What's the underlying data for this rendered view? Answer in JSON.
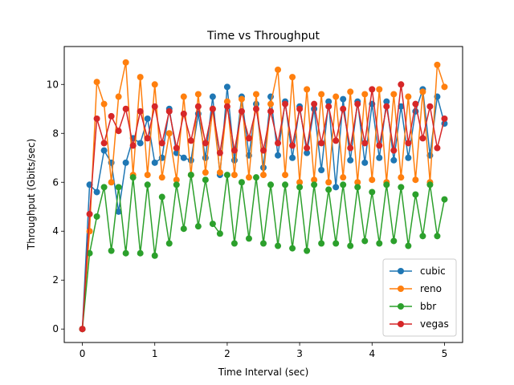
{
  "chart_data": {
    "type": "line",
    "title": "Time vs Throughput",
    "xlabel": "Time Interval (sec)",
    "ylabel": "Throughput (Gbits/sec)",
    "xlim": [
      -0.25,
      5.25
    ],
    "ylim": [
      -0.55,
      11.55
    ],
    "xticks": [
      0,
      1,
      2,
      3,
      4,
      5
    ],
    "yticks": [
      0,
      2,
      4,
      6,
      8,
      10
    ],
    "grid": false,
    "legend_position": "lower right",
    "x": [
      0.0,
      0.1,
      0.2,
      0.3,
      0.4,
      0.5,
      0.6,
      0.7,
      0.8,
      0.9,
      1.0,
      1.1,
      1.2,
      1.3,
      1.4,
      1.5,
      1.6,
      1.7,
      1.8,
      1.9,
      2.0,
      2.1,
      2.2,
      2.3,
      2.4,
      2.5,
      2.6,
      2.7,
      2.8,
      2.9,
      3.0,
      3.1,
      3.2,
      3.3,
      3.4,
      3.5,
      3.6,
      3.7,
      3.8,
      3.9,
      4.0,
      4.1,
      4.2,
      4.3,
      4.4,
      4.5,
      4.6,
      4.7,
      4.8,
      4.9,
      5.0
    ],
    "series": [
      {
        "name": "cubic",
        "color": "#1f77b4",
        "values": [
          0.0,
          5.9,
          5.6,
          7.3,
          6.8,
          4.8,
          6.8,
          7.8,
          7.6,
          8.6,
          6.8,
          7.0,
          9.0,
          7.2,
          7.0,
          6.9,
          8.8,
          7.0,
          9.5,
          6.3,
          9.9,
          6.9,
          9.5,
          7.1,
          9.2,
          6.6,
          9.5,
          7.1,
          9.3,
          7.0,
          9.1,
          7.2,
          9.0,
          6.5,
          9.3,
          5.8,
          9.4,
          6.9,
          9.3,
          6.8,
          9.2,
          7.0,
          9.3,
          6.9,
          9.1,
          7.0,
          8.9,
          9.8,
          7.1,
          9.5,
          8.4
        ]
      },
      {
        "name": "reno",
        "color": "#ff7f0e",
        "values": [
          0.0,
          4.0,
          10.1,
          9.2,
          6.0,
          9.5,
          10.9,
          6.3,
          10.3,
          6.3,
          10.0,
          6.2,
          8.0,
          6.1,
          9.5,
          6.3,
          9.6,
          6.4,
          9.0,
          6.4,
          9.3,
          6.3,
          9.4,
          6.2,
          9.6,
          6.3,
          9.2,
          10.6,
          6.3,
          10.3,
          6.0,
          9.8,
          6.1,
          9.6,
          6.0,
          9.5,
          6.2,
          9.7,
          6.0,
          9.6,
          6.1,
          9.8,
          6.0,
          9.6,
          6.2,
          9.5,
          6.1,
          9.7,
          6.0,
          10.8,
          9.9
        ]
      },
      {
        "name": "bbr",
        "color": "#2ca02c",
        "values": [
          0.0,
          3.1,
          4.6,
          5.8,
          3.2,
          5.8,
          3.1,
          6.2,
          3.1,
          5.9,
          3.0,
          5.4,
          3.5,
          5.9,
          4.1,
          6.3,
          4.2,
          6.1,
          4.3,
          3.9,
          6.3,
          3.5,
          6.0,
          3.7,
          6.2,
          3.5,
          5.9,
          3.4,
          5.9,
          3.3,
          5.8,
          3.2,
          5.9,
          3.5,
          5.7,
          3.5,
          5.9,
          3.4,
          5.8,
          3.6,
          5.6,
          3.5,
          5.9,
          3.6,
          5.8,
          3.4,
          5.5,
          3.8,
          5.9,
          3.8,
          5.3
        ]
      },
      {
        "name": "vegas",
        "color": "#d62728",
        "values": [
          0.0,
          4.7,
          8.6,
          7.6,
          8.7,
          8.1,
          9.0,
          7.5,
          8.9,
          7.8,
          9.1,
          7.6,
          8.9,
          7.4,
          8.8,
          7.7,
          9.1,
          7.6,
          9.0,
          7.2,
          9.1,
          7.3,
          8.9,
          7.8,
          9.0,
          7.3,
          8.9,
          7.6,
          9.2,
          7.5,
          9.0,
          7.4,
          9.2,
          7.6,
          9.1,
          7.7,
          9.0,
          7.4,
          9.2,
          7.6,
          9.8,
          7.5,
          9.1,
          7.3,
          10.0,
          7.6,
          9.2,
          7.8,
          9.1,
          7.4,
          8.6
        ]
      }
    ]
  }
}
